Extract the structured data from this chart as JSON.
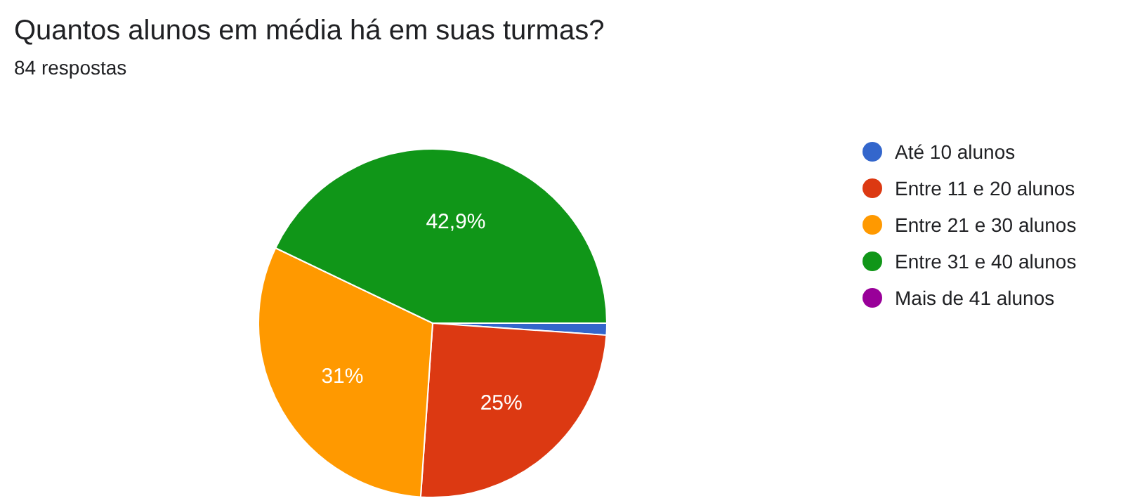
{
  "chart_data": {
    "type": "pie",
    "title": "Quantos alunos em média há em suas turmas?",
    "subtitle": "84 respostas",
    "categories": [
      "Até 10 alunos",
      "Entre 11 e 20 alunos",
      "Entre 21 e 30 alunos",
      "Entre 31 e 40 alunos",
      "Mais de 41 alunos"
    ],
    "values": [
      1.1,
      25,
      31,
      42.9,
      0
    ],
    "colors": [
      "#3366cc",
      "#dc3912",
      "#ff9900",
      "#109618",
      "#990099"
    ],
    "value_labels": [
      null,
      "25%",
      "31%",
      "42,9%",
      null
    ],
    "legend": "right"
  }
}
